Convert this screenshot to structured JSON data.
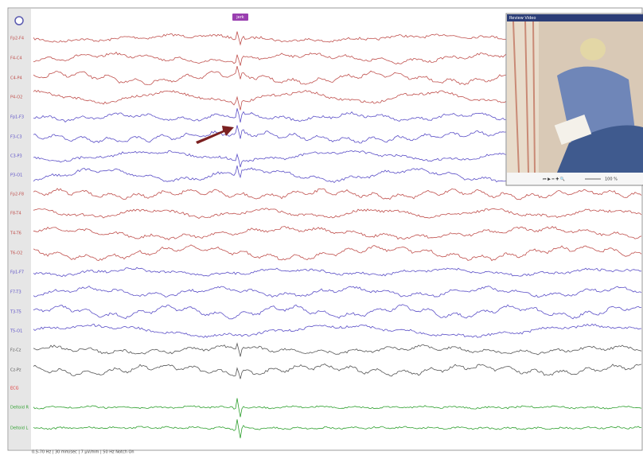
{
  "marker": "jerk",
  "channels": [
    {
      "label": "Fp2-F4",
      "color": "#c0504d"
    },
    {
      "label": "F4-C4",
      "color": "#c0504d"
    },
    {
      "label": "C4-P4",
      "color": "#c0504d"
    },
    {
      "label": "P4-O2",
      "color": "#c0504d"
    },
    {
      "label": "Fp1-F3",
      "color": "#5b4fc7"
    },
    {
      "label": "F3-C3",
      "color": "#5b4fc7"
    },
    {
      "label": "C3-P3",
      "color": "#5b4fc7"
    },
    {
      "label": "P3-O1",
      "color": "#5b4fc7"
    },
    {
      "label": "Fp2-F8",
      "color": "#c0504d"
    },
    {
      "label": "F8-T4",
      "color": "#c0504d"
    },
    {
      "label": "T4-T6",
      "color": "#c0504d"
    },
    {
      "label": "T6-O2",
      "color": "#c0504d"
    },
    {
      "label": "Fp1-F7",
      "color": "#5b4fc7"
    },
    {
      "label": "F7-T3",
      "color": "#5b4fc7"
    },
    {
      "label": "T3-T5",
      "color": "#5b4fc7"
    },
    {
      "label": "T5-O1",
      "color": "#5b4fc7"
    },
    {
      "label": "Fz-Cz",
      "color": "#555555"
    },
    {
      "label": "Cz-Pz",
      "color": "#555555"
    },
    {
      "label": "ECG",
      "color": "#e03030"
    },
    {
      "label": "Deltoid R",
      "color": "#2ea02e"
    },
    {
      "label": "Deltoid L",
      "color": "#2ea02e"
    }
  ],
  "video": {
    "title": "Review Video",
    "zoom": "100 %"
  },
  "footer": "0.5-70 Hz | 30 mm/sec | 7 µV/mm | 50 Hz Notch On"
}
